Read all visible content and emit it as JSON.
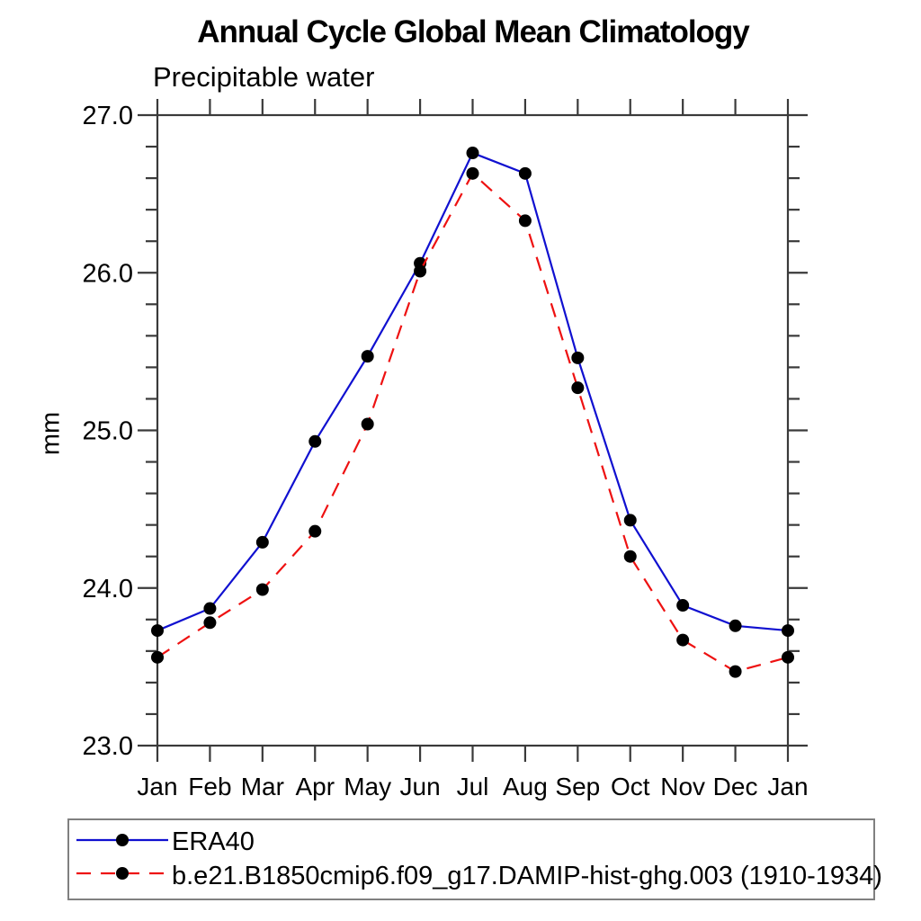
{
  "chart_data": {
    "type": "line",
    "title": "Annual Cycle Global Mean Climatology",
    "subtitle": "Precipitable water",
    "ylabel": "mm",
    "x_tick_labels": [
      "Jan",
      "Feb",
      "Mar",
      "Apr",
      "May",
      "Jun",
      "Jul",
      "Aug",
      "Sep",
      "Oct",
      "Nov",
      "Dec",
      "Jan"
    ],
    "ylim": [
      23.0,
      27.0
    ],
    "y_major_tick_labels": [
      "23.0",
      "24.0",
      "25.0",
      "26.0",
      "27.0"
    ],
    "y_minor_step": 0.2,
    "axis_color": "#3a3a3a",
    "text_color": "#000000",
    "legend_position": "bottom",
    "series": [
      {
        "name": "ERA40",
        "color": "#1010d0",
        "line_style": "solid",
        "marker": "filled-circle",
        "marker_color": "#000000",
        "values": [
          23.73,
          23.87,
          24.29,
          24.93,
          25.47,
          26.06,
          26.76,
          26.63,
          25.46,
          24.43,
          23.89,
          23.76,
          23.73
        ]
      },
      {
        "name": "b.e21.B1850cmip6.f09_g17.DAMIP-hist-ghg.003 (1910-1934)",
        "color": "#ee1111",
        "line_style": "dashed",
        "marker": "filled-circle",
        "marker_color": "#000000",
        "values": [
          23.56,
          23.78,
          23.99,
          24.36,
          25.04,
          26.01,
          26.63,
          26.33,
          25.27,
          24.2,
          23.67,
          23.47,
          23.56
        ]
      }
    ]
  }
}
